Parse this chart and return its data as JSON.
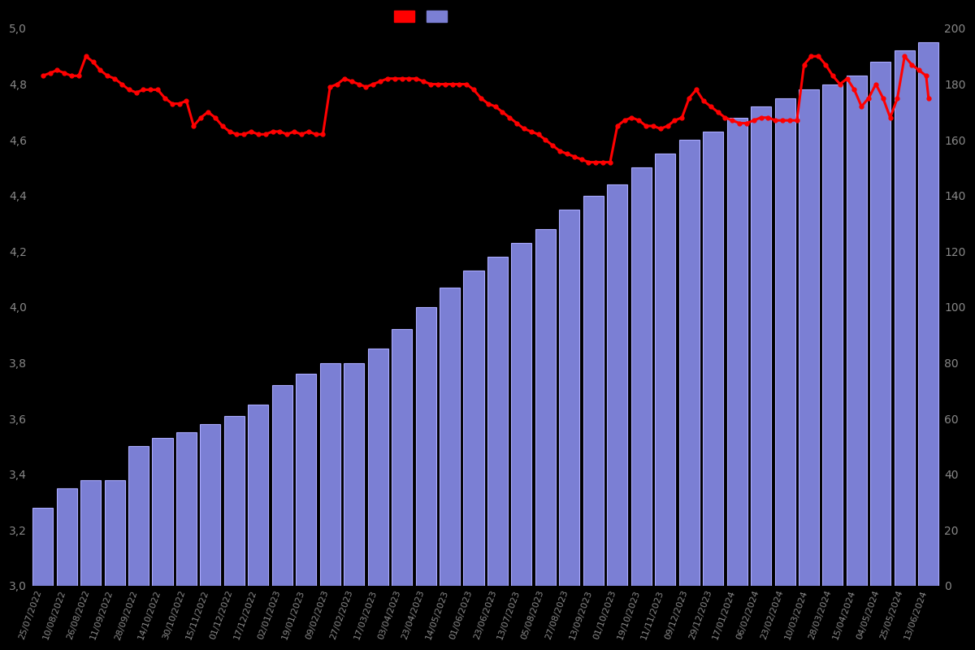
{
  "dates": [
    "25/07/2022",
    "10/08/2022",
    "26/08/2022",
    "11/09/2022",
    "28/09/2022",
    "14/10/2022",
    "30/10/2022",
    "15/11/2022",
    "01/12/2022",
    "17/12/2022",
    "02/01/2023",
    "19/01/2023",
    "09/02/2023",
    "27/02/2023",
    "17/03/2023",
    "03/04/2023",
    "23/04/2023",
    "14/05/2023",
    "01/06/2023",
    "23/06/2023",
    "13/07/2023",
    "05/08/2023",
    "27/08/2023",
    "13/09/2023",
    "01/10/2023",
    "19/10/2023",
    "11/11/2023",
    "09/12/2023",
    "29/12/2023",
    "17/01/2024",
    "06/02/2024",
    "23/02/2024",
    "10/03/2024",
    "28/03/2024",
    "15/04/2024",
    "04/05/2024",
    "25/05/2024",
    "13/06/2024"
  ],
  "bar_heights": [
    3.28,
    3.35,
    3.38,
    3.38,
    3.5,
    3.53,
    3.55,
    3.58,
    3.61,
    3.65,
    3.72,
    3.76,
    3.8,
    3.8,
    3.85,
    3.92,
    4.0,
    4.07,
    4.13,
    4.18,
    4.23,
    4.28,
    4.35,
    4.4,
    4.44,
    4.5,
    4.55,
    4.6,
    4.63,
    4.68,
    4.72,
    4.75,
    4.78,
    4.8,
    4.83,
    4.88,
    4.92,
    4.95
  ],
  "line_x": [
    0,
    0.3,
    0.6,
    0.9,
    1.2,
    1.5,
    1.8,
    2.1,
    2.4,
    2.7,
    3.0,
    3.3,
    3.6,
    3.9,
    4.2,
    4.5,
    4.8,
    5.1,
    5.4,
    5.7,
    6.0,
    6.3,
    6.6,
    6.9,
    7.2,
    7.5,
    7.8,
    8.1,
    8.4,
    8.7,
    9.0,
    9.3,
    9.6,
    9.9,
    10.2,
    10.5,
    10.8,
    11.1,
    11.4,
    11.7,
    12.0,
    12.3,
    12.6,
    12.9,
    13.2,
    13.5,
    13.8,
    14.1,
    14.4,
    14.7,
    15.0,
    15.3,
    15.6,
    15.9,
    16.2,
    16.5,
    16.8,
    17.1,
    17.4,
    17.7,
    18.0,
    18.3,
    18.6,
    18.9,
    19.2,
    19.5,
    19.8,
    20.1,
    20.4,
    20.7,
    21.0,
    21.3,
    21.6,
    21.9,
    22.2,
    22.5,
    22.8,
    23.1,
    23.4,
    23.7,
    24.0,
    24.3,
    24.6,
    24.9,
    25.2,
    25.5,
    25.8,
    26.1,
    26.4,
    26.7,
    27.0,
    27.3,
    27.6,
    27.9,
    28.2,
    28.5,
    28.8,
    29.1,
    29.4,
    29.7,
    30.0,
    30.3,
    30.6,
    30.9,
    31.2,
    31.5,
    31.8,
    32.1,
    32.4,
    32.7,
    33.0,
    33.3,
    33.6,
    33.9,
    34.2,
    34.5,
    34.8,
    35.1,
    35.4,
    35.7,
    36.0,
    36.3,
    36.6,
    36.9,
    37.0
  ],
  "line_values": [
    4.83,
    4.84,
    4.85,
    4.84,
    4.83,
    4.83,
    4.9,
    4.88,
    4.85,
    4.83,
    4.82,
    4.8,
    4.78,
    4.77,
    4.78,
    4.78,
    4.78,
    4.75,
    4.73,
    4.73,
    4.74,
    4.65,
    4.68,
    4.7,
    4.68,
    4.65,
    4.63,
    4.62,
    4.62,
    4.63,
    4.62,
    4.62,
    4.63,
    4.63,
    4.62,
    4.63,
    4.62,
    4.63,
    4.62,
    4.62,
    4.79,
    4.8,
    4.82,
    4.81,
    4.8,
    4.79,
    4.8,
    4.81,
    4.82,
    4.82,
    4.82,
    4.82,
    4.82,
    4.81,
    4.8,
    4.8,
    4.8,
    4.8,
    4.8,
    4.8,
    4.78,
    4.75,
    4.73,
    4.72,
    4.7,
    4.68,
    4.66,
    4.64,
    4.63,
    4.62,
    4.6,
    4.58,
    4.56,
    4.55,
    4.54,
    4.53,
    4.52,
    4.52,
    4.52,
    4.52,
    4.65,
    4.67,
    4.68,
    4.67,
    4.65,
    4.65,
    4.64,
    4.65,
    4.67,
    4.68,
    4.75,
    4.78,
    4.74,
    4.72,
    4.7,
    4.68,
    4.67,
    4.66,
    4.66,
    4.67,
    4.68,
    4.68,
    4.67,
    4.67,
    4.67,
    4.67,
    4.87,
    4.9,
    4.9,
    4.87,
    4.83,
    4.8,
    4.82,
    4.78,
    4.72,
    4.75,
    4.8,
    4.75,
    4.68,
    4.75,
    4.9,
    4.87,
    4.85,
    4.83,
    4.75
  ],
  "background_color": "#000000",
  "bar_color": "#7B7FD4",
  "bar_edge_color": "#aaaaff",
  "line_color": "#FF0000",
  "text_color": "#888888",
  "ylim_left": [
    3.0,
    5.0
  ],
  "ylim_right": [
    0,
    200
  ],
  "yticks_left": [
    3.0,
    3.2,
    3.4,
    3.6,
    3.8,
    4.0,
    4.2,
    4.4,
    4.6,
    4.8,
    5.0
  ],
  "yticks_right": [
    0,
    20,
    40,
    60,
    80,
    100,
    120,
    140,
    160,
    180,
    200
  ]
}
